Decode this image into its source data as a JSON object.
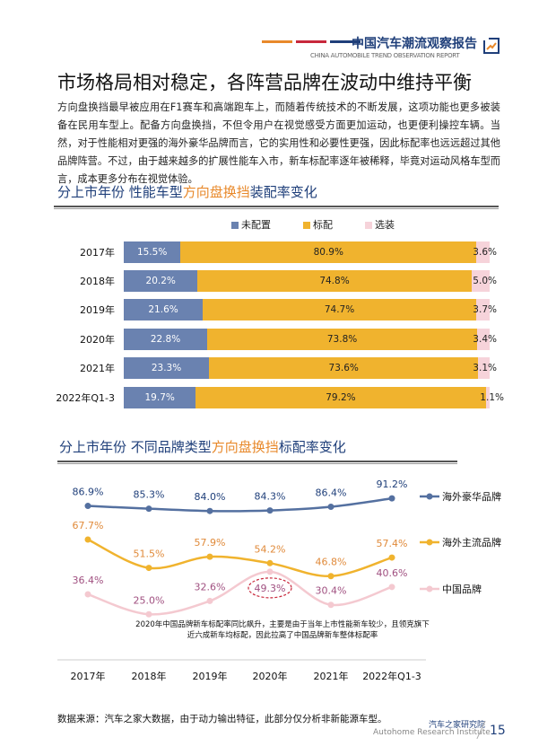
{
  "header": {
    "title": "中国汽车潮流观察报告",
    "subtitle": "CHINA AUTOMOBILE TREND OBSERVATION REPORT",
    "icon": "trend-chart-icon",
    "bar_colors": [
      "#e8892b",
      "#c8283c",
      "#1f3f7a"
    ]
  },
  "page_title": "市场格局相对稳定，各阵营品牌在波动中维持平衡",
  "intro": "方向盘换挡最早被应用在F1赛车和高端跑车上，而随着传统技术的不断发展，这项功能也更多被装备在民用车型上。配备方向盘换挡，不但令用户在视觉感受方面更加运动，也更便利操控车辆。当然，对于性能相对更强的海外豪华品牌而言，它的实用性和必要性更强，因此标配率也远远超过其他品牌阵营。不过，由于越来越多的扩展性能车入市，新车标配率逐年被稀释，毕竟对运动风格车型而言，成本更多分布在视觉体验。",
  "section1": {
    "title_a": "分上市年份  性能车型",
    "title_hl": "方向盘换挡",
    "title_b": "装配率变化"
  },
  "section2": {
    "title_a": "分上市年份  不同品牌类型",
    "title_hl": "方向盘换挡",
    "title_b": "标配率变化"
  },
  "chart_data": [
    {
      "type": "bar",
      "stacked": true,
      "orientation": "horizontal",
      "categories": [
        "2017年",
        "2018年",
        "2019年",
        "2020年",
        "2021年",
        "2022年Q1-3"
      ],
      "series": [
        {
          "name": "未配置",
          "color": "#6a82b0",
          "values": [
            15.5,
            20.2,
            21.6,
            22.8,
            23.3,
            19.7
          ],
          "labels": [
            "15.5%",
            "20.2%",
            "21.6%",
            "22.8%",
            "23.3%",
            "19.7%"
          ]
        },
        {
          "name": "标配",
          "color": "#f0b32e",
          "values": [
            80.9,
            74.8,
            74.7,
            73.8,
            73.6,
            79.2
          ],
          "labels": [
            "80.9%",
            "74.8%",
            "74.7%",
            "73.8%",
            "73.6%",
            "79.2%"
          ]
        },
        {
          "name": "选装",
          "color": "#f6d3da",
          "values": [
            3.6,
            5.0,
            3.7,
            3.4,
            3.1,
            1.1
          ],
          "labels": [
            "3.6%",
            "5.0%",
            "3.7%",
            "3.4%",
            "3.1%",
            "1.1%"
          ]
        }
      ],
      "legend": "top",
      "xlim": [
        0,
        100
      ]
    },
    {
      "type": "line",
      "smooth": true,
      "categories": [
        "2017年",
        "2018年",
        "2019年",
        "2020年",
        "2021年",
        "2022年Q1-3"
      ],
      "series": [
        {
          "name": "海外豪华品牌",
          "color": "#5470a0",
          "label_color": "#1f3f7a",
          "values": [
            86.9,
            85.3,
            84.0,
            84.3,
            86.4,
            91.2
          ],
          "labels": [
            "86.9%",
            "85.3%",
            "84.0%",
            "84.3%",
            "86.4%",
            "91.2%"
          ]
        },
        {
          "name": "海外主流品牌",
          "color": "#f0b32e",
          "label_color": "#e08a3a",
          "values": [
            67.7,
            51.5,
            57.9,
            54.2,
            46.8,
            57.4
          ],
          "labels": [
            "67.7%",
            "51.5%",
            "57.9%",
            "54.2%",
            "46.8%",
            "57.4%"
          ]
        },
        {
          "name": "中国品牌",
          "color": "#f4c9d0",
          "label_color": "#a05080",
          "values": [
            36.4,
            25.0,
            32.6,
            49.3,
            30.4,
            40.6
          ],
          "labels": [
            "36.4%",
            "25.0%",
            "32.6%",
            "49.3%",
            "30.4%",
            "40.6%"
          ]
        }
      ],
      "highlight": {
        "series": "中国品牌",
        "category": "2020年",
        "color": "#c8283c"
      },
      "annotation": "2020年中国品牌新车标配率同比飙升，主要是由于当年上市性能新车较少，且领克旗下近六成新车均标配，因此拉高了中国品牌新车整体标配率",
      "legend": "right"
    }
  ],
  "footer": {
    "source": "数据来源：汽车之家大数据，由于动力输出特征，此部分仅分析非新能源车型。",
    "org_cn": "汽车之家研究院",
    "org_en": "Autohome Research Institute",
    "page": "15"
  }
}
